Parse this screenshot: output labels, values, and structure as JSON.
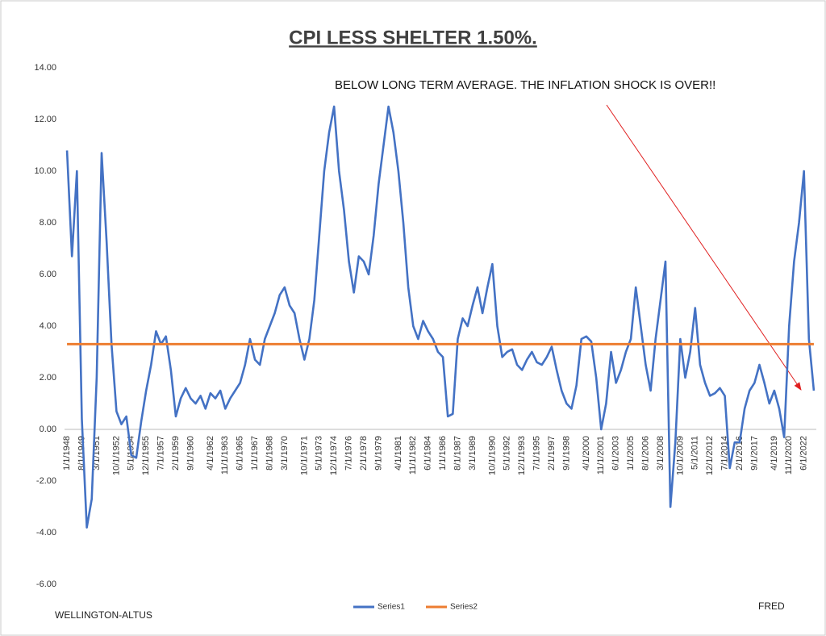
{
  "chart_data": {
    "type": "line",
    "title": "CPI LESS SHELTER 1.50%.",
    "annotation": "BELOW LONG TERM AVERAGE. THE INFLATION SHOCK IS OVER!!",
    "source_left": "WELLINGTON-ALTUS",
    "source_right": "FRED",
    "categories": [
      "1/1/1948",
      null,
      null,
      "8/1/1949",
      null,
      null,
      "3/1/1951",
      null,
      null,
      null,
      "10/1/1952",
      null,
      null,
      "5/1/1954",
      null,
      null,
      "12/1/1955",
      null,
      null,
      "7/1/1957",
      null,
      null,
      "2/1/1959",
      null,
      null,
      "9/1/1960",
      null,
      null,
      null,
      "4/1/1962",
      null,
      null,
      "11/1/1963",
      null,
      null,
      "6/1/1965",
      null,
      null,
      "1/1/1967",
      null,
      null,
      "8/1/1968",
      null,
      null,
      "3/1/1970",
      null,
      null,
      null,
      "10/1/1971",
      null,
      null,
      "5/1/1973",
      null,
      null,
      "12/1/1974",
      null,
      null,
      "7/1/1976",
      null,
      null,
      "2/1/1978",
      null,
      null,
      "9/1/1979",
      null,
      null,
      null,
      "4/1/1981",
      null,
      null,
      "11/1/1982",
      null,
      null,
      "6/1/1984",
      null,
      null,
      "1/1/1986",
      null,
      null,
      "8/1/1987",
      null,
      null,
      "3/1/1989",
      null,
      null,
      null,
      "10/1/1990",
      null,
      null,
      "5/1/1992",
      null,
      null,
      "12/1/1993",
      null,
      null,
      "7/1/1995",
      null,
      null,
      "2/1/1997",
      null,
      null,
      "9/1/1998",
      null,
      null,
      null,
      "4/1/2000",
      null,
      null,
      "11/1/2001",
      null,
      null,
      "6/1/2003",
      null,
      null,
      "1/1/2005",
      null,
      null,
      "8/1/2006",
      null,
      null,
      "3/1/2008",
      null,
      null,
      null,
      "10/1/2009",
      null,
      null,
      "5/1/2011",
      null,
      null,
      "12/1/2012",
      null,
      null,
      "7/1/2014",
      null,
      null,
      "2/1/2016",
      null,
      null,
      "9/1/2017",
      null,
      null,
      null,
      "4/1/2019",
      null,
      null,
      "11/1/2020",
      null,
      null,
      "6/1/2022",
      null,
      null
    ],
    "series": [
      {
        "name": "Series1",
        "color": "#4472c4",
        "values": [
          10.8,
          6.7,
          10,
          0.4,
          -3.8,
          -2.7,
          2,
          10.7,
          7.3,
          3.3,
          0.7,
          0.2,
          0.5,
          -1.0,
          -1.1,
          0.3,
          1.5,
          2.5,
          3.8,
          3.3,
          3.6,
          2.3,
          0.5,
          1.2,
          1.6,
          1.2,
          1.0,
          1.3,
          0.8,
          1.4,
          1.2,
          1.5,
          0.8,
          1.2,
          1.5,
          1.8,
          2.5,
          3.5,
          2.7,
          2.5,
          3.5,
          4.0,
          4.5,
          5.2,
          5.5,
          4.8,
          4.5,
          3.5,
          2.7,
          3.5,
          5,
          7.5,
          10,
          11.5,
          12.5,
          10,
          8.5,
          6.5,
          5.3,
          6.7,
          6.5,
          6,
          7.5,
          9.5,
          11,
          12.5,
          11.5,
          10,
          8,
          5.5,
          4.0,
          3.5,
          4.2,
          3.8,
          3.5,
          3.0,
          2.8,
          0.5,
          0.6,
          3.5,
          4.3,
          4.0,
          4.8,
          5.5,
          4.5,
          5.5,
          6.4,
          4.0,
          2.8,
          3.0,
          3.1,
          2.5,
          2.3,
          2.7,
          3.0,
          2.6,
          2.5,
          2.8,
          3.2,
          2.3,
          1.5,
          1.0,
          0.8,
          1.7,
          3.5,
          3.6,
          3.4,
          2.0,
          0,
          1.0,
          3.0,
          1.8,
          2.3,
          3.0,
          3.5,
          5.5,
          4.0,
          2.5,
          1.5,
          3.5,
          5,
          6.5,
          -3,
          -0.5,
          3.5,
          2,
          3,
          4.7,
          2.5,
          1.8,
          1.3,
          1.4,
          1.6,
          1.3,
          -1.5,
          -0.5,
          -0.5,
          0.8,
          1.5,
          1.8,
          2.5,
          1.8,
          1.0,
          1.5,
          0.8,
          -0.3,
          4,
          6.5,
          8,
          10,
          3.5,
          1.5
        ]
      },
      {
        "name": "Series2",
        "color": "#ed7d31",
        "values": [
          3.3,
          3.3,
          3.3,
          3.3,
          3.3,
          3.3,
          3.3,
          3.3,
          3.3,
          3.3,
          3.3,
          3.3,
          3.3,
          3.3,
          3.3,
          3.3,
          3.3,
          3.3,
          3.3,
          3.3,
          3.3,
          3.3,
          3.3,
          3.3,
          3.3,
          3.3,
          3.3,
          3.3,
          3.3,
          3.3,
          3.3,
          3.3,
          3.3,
          3.3,
          3.3,
          3.3,
          3.3,
          3.3,
          3.3,
          3.3,
          3.3,
          3.3,
          3.3,
          3.3,
          3.3,
          3.3,
          3.3,
          3.3,
          3.3,
          3.3,
          3.3,
          3.3,
          3.3,
          3.3,
          3.3,
          3.3,
          3.3,
          3.3,
          3.3,
          3.3,
          3.3,
          3.3,
          3.3,
          3.3,
          3.3,
          3.3,
          3.3,
          3.3,
          3.3,
          3.3,
          3.3,
          3.3,
          3.3,
          3.3,
          3.3,
          3.3,
          3.3,
          3.3,
          3.3,
          3.3,
          3.3,
          3.3,
          3.3,
          3.3,
          3.3,
          3.3,
          3.3,
          3.3,
          3.3,
          3.3,
          3.3,
          3.3,
          3.3,
          3.3,
          3.3,
          3.3,
          3.3,
          3.3,
          3.3,
          3.3,
          3.3,
          3.3,
          3.3,
          3.3,
          3.3,
          3.3,
          3.3,
          3.3,
          3.3,
          3.3,
          3.3,
          3.3,
          3.3,
          3.3,
          3.3,
          3.3,
          3.3,
          3.3,
          3.3,
          3.3,
          3.3,
          3.3,
          3.3,
          3.3,
          3.3,
          3.3,
          3.3,
          3.3,
          3.3,
          3.3,
          3.3,
          3.3,
          3.3,
          3.3,
          3.3,
          3.3,
          3.3,
          3.3,
          3.3,
          3.3,
          3.3,
          3.3,
          3.3,
          3.3,
          3.3,
          3.3,
          3.3,
          3.3,
          3.3,
          3.3,
          3.3,
          3.3
        ]
      }
    ],
    "ylim": [
      -6,
      14
    ],
    "yticks": [
      {
        "value": -6,
        "label": "-6.00"
      },
      {
        "value": -4,
        "label": "-4.00"
      },
      {
        "value": -2,
        "label": "-2.00"
      },
      {
        "value": 0,
        "label": "0.00"
      },
      {
        "value": 2,
        "label": "2.00"
      },
      {
        "value": 4,
        "label": "4.00"
      },
      {
        "value": 6,
        "label": "6.00"
      },
      {
        "value": 8,
        "label": "8.00"
      },
      {
        "value": 10,
        "label": "10.00"
      },
      {
        "value": 12,
        "label": "12.00"
      },
      {
        "value": 14,
        "label": "14.00"
      }
    ],
    "grid": false,
    "legend": "bottom"
  }
}
